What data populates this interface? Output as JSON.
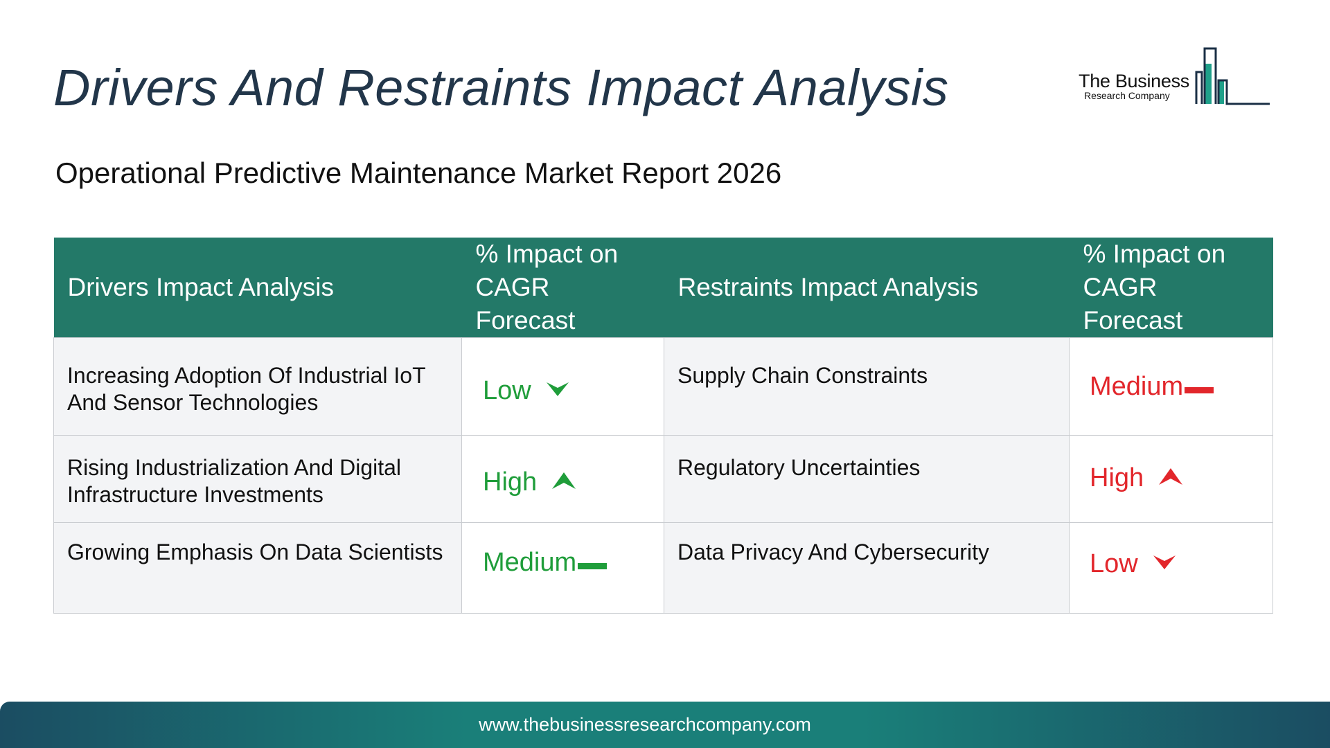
{
  "title": "Drivers And Restraints Impact Analysis",
  "subtitle": "Operational Predictive Maintenance Market Report 2026",
  "logo": {
    "line1": "The Business",
    "line2": "Research Company"
  },
  "colors": {
    "header_bg": "#237968",
    "positive": "#1f9d3a",
    "negative": "#e2262b",
    "title": "#22364a"
  },
  "table": {
    "headers": {
      "drivers": "Drivers Impact Analysis",
      "drivers_impact": "% Impact on CAGR Forecast",
      "restraints": "Restraints Impact Analysis",
      "restraints_impact": "% Impact on CAGR Forecast"
    },
    "rows": [
      {
        "driver": "Increasing Adoption Of Industrial IoT And Sensor Technologies",
        "driver_impact": "Low",
        "driver_icon": "arrow-down-icon",
        "restraint": "Supply Chain Constraints",
        "restraint_impact": "Medium",
        "restraint_icon": "dash-icon"
      },
      {
        "driver": "Rising Industrialization And Digital Infrastructure Investments",
        "driver_impact": "High",
        "driver_icon": "arrow-up-icon",
        "restraint": "Regulatory Uncertainties",
        "restraint_impact": "High",
        "restraint_icon": "arrow-up-icon"
      },
      {
        "driver": "Growing Emphasis On Data Scientists",
        "driver_impact": "Medium",
        "driver_icon": "dash-icon",
        "restraint": "Data Privacy And Cybersecurity",
        "restraint_impact": "Low",
        "restraint_icon": "arrow-down-icon"
      }
    ]
  },
  "footer": {
    "url": "www.thebusinessresearchcompany.com"
  }
}
